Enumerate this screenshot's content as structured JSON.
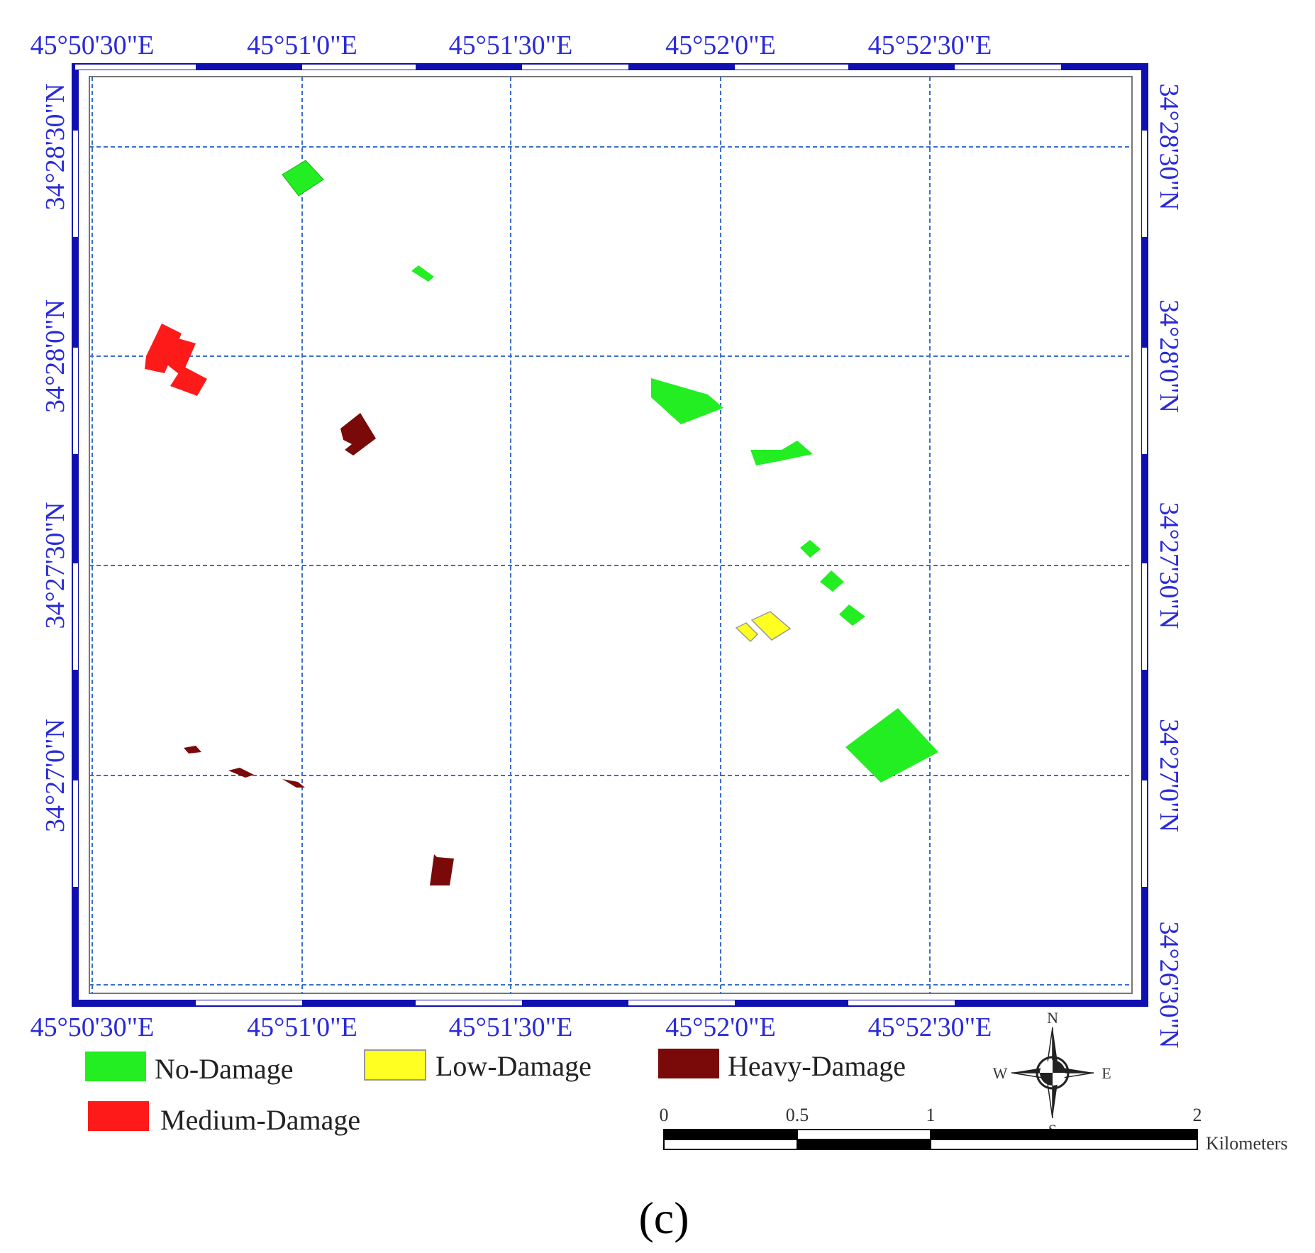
{
  "map": {
    "top_lon_labels": [
      "45°50'30\"E",
      "45°51'0\"E",
      "45°51'30\"E",
      "45°52'0\"E",
      "45°52'30\"E"
    ],
    "bottom_lon_labels": [
      "45°50'30\"E",
      "45°51'0\"E",
      "45°51'30\"E",
      "45°52'0\"E",
      "45°52'30\"E"
    ],
    "left_lat_labels": [
      "34°28'30\"N",
      "34°28'0\"N",
      "34°27'30\"N",
      "34°27'0\"N"
    ],
    "right_lat_labels": [
      "34°28'30\"N",
      "34°28'0\"N",
      "34°27'30\"N",
      "34°27'0\"N",
      "34°26'30\"N"
    ]
  },
  "legend": {
    "items": [
      {
        "label": "No-Damage",
        "color": "#22ee22"
      },
      {
        "label": "Low-Damage",
        "color": "#ffff22"
      },
      {
        "label": "Heavy-Damage",
        "color": "#7a0a0a"
      },
      {
        "label": "Medium-Damage",
        "color": "#ff1a1a"
      }
    ]
  },
  "scale_bar": {
    "ticks": [
      "0",
      "0.5",
      "1",
      "2"
    ],
    "unit": "Kilometers"
  },
  "compass": {
    "n": "N",
    "s": "S",
    "e": "E",
    "w": "W"
  },
  "panel_label": "(c)",
  "colors": {
    "frame": "#1010b0",
    "grid": "#3a6fc8",
    "no_damage": "#22ee22",
    "low_damage": "#ffff22",
    "medium_damage": "#ff1a1a",
    "heavy_damage": "#7a0a0a"
  }
}
